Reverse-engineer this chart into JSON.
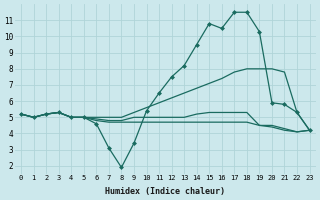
{
  "xlabel": "Humidex (Indice chaleur)",
  "bg_color": "#cce8ec",
  "grid_color": "#b0d4d8",
  "line_color": "#1a6b60",
  "xlim": [
    -0.5,
    23.5
  ],
  "ylim": [
    1.5,
    12.0
  ],
  "xticks": [
    0,
    1,
    2,
    3,
    4,
    5,
    6,
    7,
    8,
    9,
    10,
    11,
    12,
    13,
    14,
    15,
    16,
    17,
    18,
    19,
    20,
    21,
    22,
    23
  ],
  "yticks": [
    2,
    3,
    4,
    5,
    6,
    7,
    8,
    9,
    10,
    11
  ],
  "line1_x": [
    0,
    1,
    2,
    3,
    4,
    5,
    6,
    7,
    8,
    9,
    10,
    11,
    12,
    13,
    14,
    15,
    16,
    17,
    18,
    19,
    20,
    21,
    22,
    23
  ],
  "line1_y": [
    5.2,
    5.0,
    5.2,
    5.3,
    5.0,
    5.0,
    4.6,
    3.1,
    1.9,
    3.4,
    5.4,
    6.5,
    7.5,
    8.2,
    9.5,
    10.8,
    10.5,
    11.5,
    11.5,
    10.3,
    5.9,
    5.8,
    5.3,
    4.2
  ],
  "line2_x": [
    0,
    1,
    2,
    3,
    4,
    5,
    6,
    7,
    8,
    9,
    10,
    11,
    12,
    13,
    14,
    15,
    16,
    17,
    18,
    19,
    20,
    21,
    22,
    23
  ],
  "line2_y": [
    5.2,
    5.0,
    5.2,
    5.3,
    5.0,
    5.0,
    5.0,
    5.0,
    5.0,
    5.3,
    5.6,
    5.9,
    6.2,
    6.5,
    6.8,
    7.1,
    7.4,
    7.8,
    8.0,
    8.0,
    8.0,
    7.8,
    5.3,
    4.2
  ],
  "line3_x": [
    0,
    1,
    2,
    3,
    4,
    5,
    6,
    7,
    8,
    9,
    10,
    11,
    12,
    13,
    14,
    15,
    16,
    17,
    18,
    19,
    20,
    21,
    22,
    23
  ],
  "line3_y": [
    5.2,
    5.0,
    5.2,
    5.3,
    5.0,
    5.0,
    4.9,
    4.8,
    4.8,
    5.0,
    5.0,
    5.0,
    5.0,
    5.0,
    5.2,
    5.3,
    5.3,
    5.3,
    5.3,
    4.5,
    4.5,
    4.3,
    4.1,
    4.2
  ],
  "line4_x": [
    0,
    1,
    2,
    3,
    4,
    5,
    6,
    7,
    8,
    9,
    10,
    11,
    12,
    13,
    14,
    15,
    16,
    17,
    18,
    19,
    20,
    21,
    22,
    23
  ],
  "line4_y": [
    5.2,
    5.0,
    5.2,
    5.3,
    5.0,
    5.0,
    4.8,
    4.7,
    4.7,
    4.7,
    4.7,
    4.7,
    4.7,
    4.7,
    4.7,
    4.7,
    4.7,
    4.7,
    4.7,
    4.5,
    4.4,
    4.2,
    4.1,
    4.2
  ]
}
